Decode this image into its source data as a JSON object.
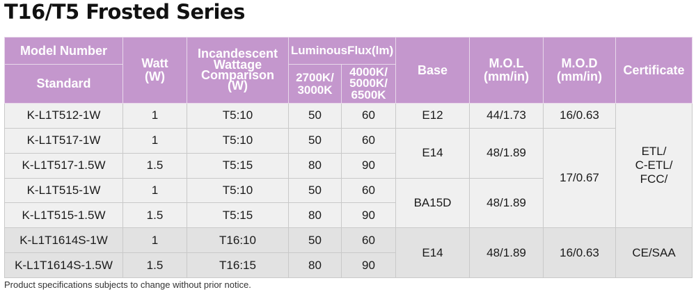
{
  "title": "T16/T5 Frosted Series",
  "headers": {
    "model_number": "Model Number",
    "standard": "Standard",
    "watt": "Watt",
    "watt_unit": "(W)",
    "incandescent_line1": "Incandescent",
    "incandescent_line2": "Wattage",
    "incandescent_line3": "Comparison",
    "incandescent_line4": "(W)",
    "luminous_flux": "LuminousFlux(lm)",
    "flux_col1_line1": "2700K/",
    "flux_col1_line2": "3000K",
    "flux_col2_line1": "4000K/",
    "flux_col2_line2": "5000K/",
    "flux_col2_line3": "6500K",
    "base": "Base",
    "mol": "M.O.L",
    "mol_unit": "(mm/in)",
    "mod": "M.O.D",
    "mod_unit": "(mm/in)",
    "certificate": "Certificate"
  },
  "rows": [
    {
      "model": "K-L1T512-1W",
      "watt": "1",
      "incandescent": "T5:10",
      "flux_warm": "50",
      "flux_cool": "60"
    },
    {
      "model": "K-L1T517-1W",
      "watt": "1",
      "incandescent": "T5:10",
      "flux_warm": "50",
      "flux_cool": "60"
    },
    {
      "model": "K-L1T517-1.5W",
      "watt": "1.5",
      "incandescent": "T5:15",
      "flux_warm": "80",
      "flux_cool": "90"
    },
    {
      "model": "K-L1T515-1W",
      "watt": "1",
      "incandescent": "T5:10",
      "flux_warm": "50",
      "flux_cool": "60"
    },
    {
      "model": "K-L1T515-1.5W",
      "watt": "1.5",
      "incandescent": "T5:15",
      "flux_warm": "80",
      "flux_cool": "90"
    },
    {
      "model": "K-L1T1614S-1W",
      "watt": "1",
      "incandescent": "T16:10",
      "flux_warm": "50",
      "flux_cool": "60"
    },
    {
      "model": "K-L1T1614S-1.5W",
      "watt": "1.5",
      "incandescent": "T16:15",
      "flux_warm": "80",
      "flux_cool": "90"
    }
  ],
  "merged": {
    "base_e12": "E12",
    "base_e14_a": "E14",
    "base_ba15d": "BA15D",
    "base_e14_b": "E14",
    "mol_a": "44/1.73",
    "mol_b": "48/1.89",
    "mol_c": "48/1.89",
    "mol_d": "48/1.89",
    "mod_a": "16/0.63",
    "mod_b": "17/0.67",
    "mod_c": "16/0.63",
    "cert_a_line1": "ETL/",
    "cert_a_line2": "C-ETL/",
    "cert_a_line3": "FCC/",
    "cert_b": "CE/SAA"
  },
  "footnote": "Product specifications subjects to change without prior notice.",
  "colors": {
    "header_bg": "#c497cd",
    "row_light": "#f0f0f0",
    "row_dark": "#e2e2e2"
  }
}
